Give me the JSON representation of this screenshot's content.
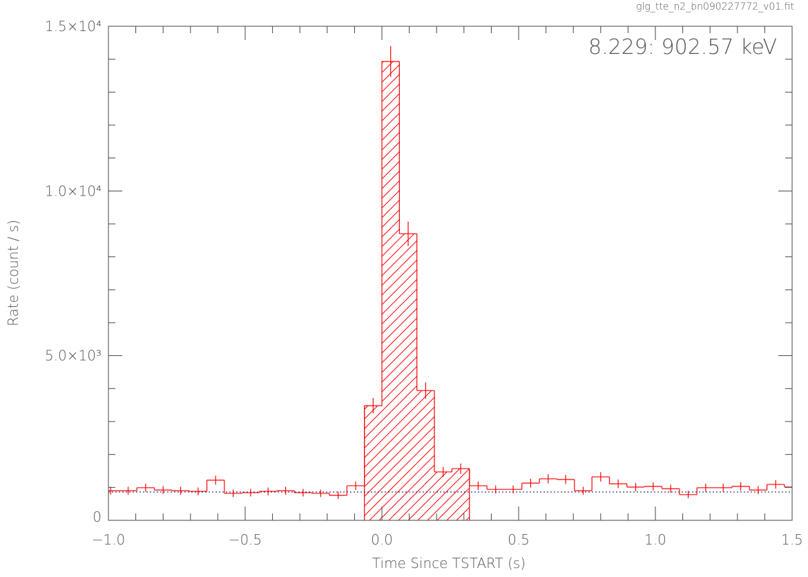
{
  "chart_data": {
    "type": "histogram",
    "file_label": "glg_tte_n2_bn090227772_v01.fit",
    "annotation": "8.229: 902.57 keV",
    "x_label": "Time Since TSTART (s)",
    "y_label": "Rate (count / s)",
    "color": "#ff0000",
    "bins": [
      -1.024,
      -0.96,
      -0.896,
      -0.832,
      -0.768,
      -0.704,
      -0.64,
      -0.576,
      -0.512,
      -0.448,
      -0.384,
      -0.32,
      -0.256,
      -0.192,
      -0.128,
      -0.064,
      0,
      0.064,
      0.128,
      0.192,
      0.256,
      0.32,
      0.384,
      0.448,
      0.512,
      0.576,
      0.64,
      0.704,
      0.768,
      0.832,
      0.896,
      0.96,
      1.024,
      1.088,
      1.152,
      1.216,
      1.28,
      1.344,
      1.408,
      1.472,
      1.536
    ],
    "values": [
      900,
      900,
      990,
      920,
      900,
      880,
      1220,
      820,
      840,
      880,
      900,
      840,
      820,
      760,
      1050,
      3480,
      13930,
      8700,
      3940,
      1470,
      1570,
      1050,
      940,
      940,
      1130,
      1260,
      1240,
      900,
      1320,
      1110,
      1010,
      1030,
      960,
      780,
      990,
      990,
      1030,
      920,
      1090,
      1010
    ],
    "errors": [
      119,
      119,
      124,
      120,
      119,
      117,
      138,
      113,
      115,
      117,
      119,
      115,
      113,
      109,
      128,
      233,
      467,
      369,
      248,
      152,
      157,
      128,
      121,
      121,
      133,
      140,
      139,
      119,
      144,
      132,
      126,
      127,
      122,
      110,
      124,
      124,
      127,
      120,
      130,
      126
    ],
    "hatch_range": [
      -0.064,
      0.32
    ],
    "background_rate": 860,
    "background_color": "#000080",
    "xlim": [
      -1.0,
      1.5
    ],
    "ylim": [
      0,
      15000
    ],
    "xticks": [
      {
        "value": -1.0,
        "label": "−1.0"
      },
      {
        "value": -0.5,
        "label": "−0.5"
      },
      {
        "value": 0,
        "label": "0.0"
      },
      {
        "value": 0.5,
        "label": "0.5"
      },
      {
        "value": 1.0,
        "label": "1.0"
      },
      {
        "value": 1.5,
        "label": "1.5"
      }
    ],
    "yticks": [
      0,
      {
        "value": 5000,
        "label": "5.0×10³"
      },
      {
        "value": 10000,
        "label": "1.0×10⁴"
      },
      {
        "value": 15000,
        "label": "1.5×10⁴"
      }
    ],
    "xminorticks": [
      -0.9,
      -0.8,
      -0.7,
      -0.6,
      -0.4,
      -0.3,
      -0.2,
      -0.1,
      0.1,
      0.2,
      0.3,
      0.4,
      0.6,
      0.7,
      0.8,
      0.9,
      1.1,
      1.2,
      1.3,
      1.4
    ],
    "yminorticks": [
      1000,
      2000,
      3000,
      4000,
      6000,
      7000,
      8000,
      9000,
      11000,
      12000,
      13000,
      14000
    ]
  }
}
